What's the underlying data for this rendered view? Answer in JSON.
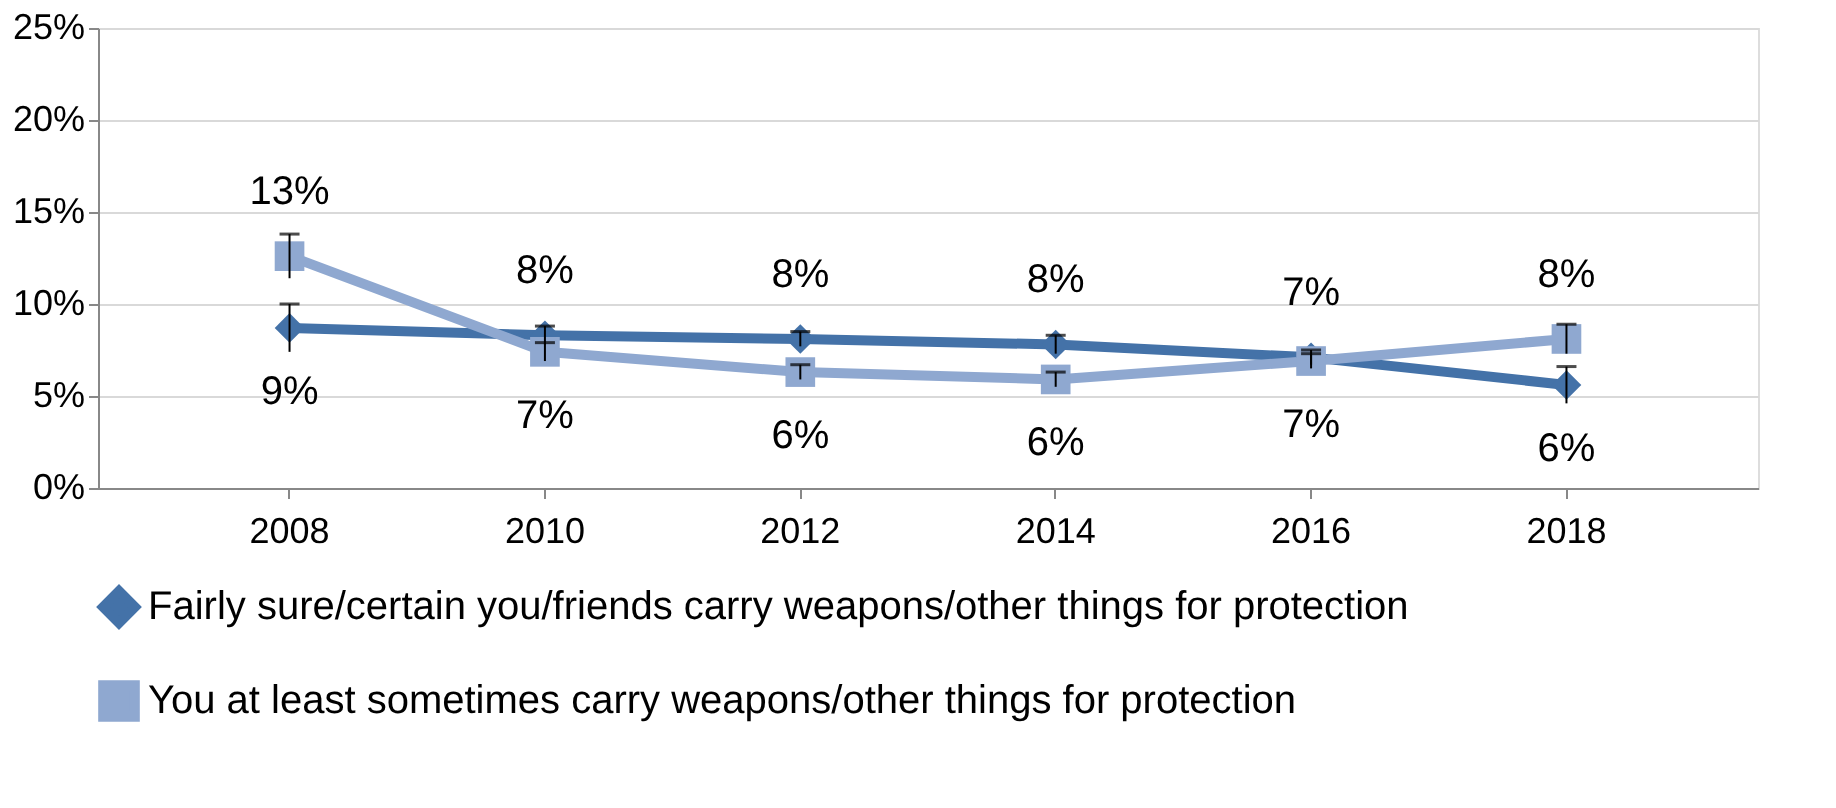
{
  "chart_data": {
    "type": "line",
    "categories": [
      "2008",
      "2010",
      "2012",
      "2014",
      "2016",
      "2018"
    ],
    "series": [
      {
        "name": "Fairly sure/certain you/friends carry weapons/other things for protection",
        "color": "#4472a8",
        "marker": "diamond",
        "values": [
          8.7,
          8.3,
          8.1,
          7.8,
          7.1,
          5.6
        ],
        "value_labels": [
          "9%",
          "8%",
          "8%",
          "8%",
          "7%",
          "6%"
        ],
        "errors": [
          1.3,
          0.5,
          0.4,
          0.5,
          0.4,
          1.0
        ]
      },
      {
        "name": "You at least sometimes carry weapons/other things for protection",
        "color": "#8fa8d0",
        "marker": "square",
        "values": [
          12.6,
          7.4,
          6.3,
          5.9,
          6.9,
          8.1
        ],
        "value_labels": [
          "13%",
          "7%",
          "6%",
          "6%",
          "7%",
          "8%"
        ],
        "errors": [
          1.2,
          0.5,
          0.4,
          0.4,
          0.4,
          0.8
        ]
      }
    ],
    "ylim": [
      0,
      25
    ],
    "yticks": [
      {
        "value": 0,
        "label": "0%"
      },
      {
        "value": 5,
        "label": "5%"
      },
      {
        "value": 10,
        "label": "10%"
      },
      {
        "value": 15,
        "label": "15%"
      },
      {
        "value": 20,
        "label": "20%"
      },
      {
        "value": 25,
        "label": "25%"
      }
    ],
    "grid": "y",
    "legend": "bottom",
    "line_style": "solid"
  }
}
